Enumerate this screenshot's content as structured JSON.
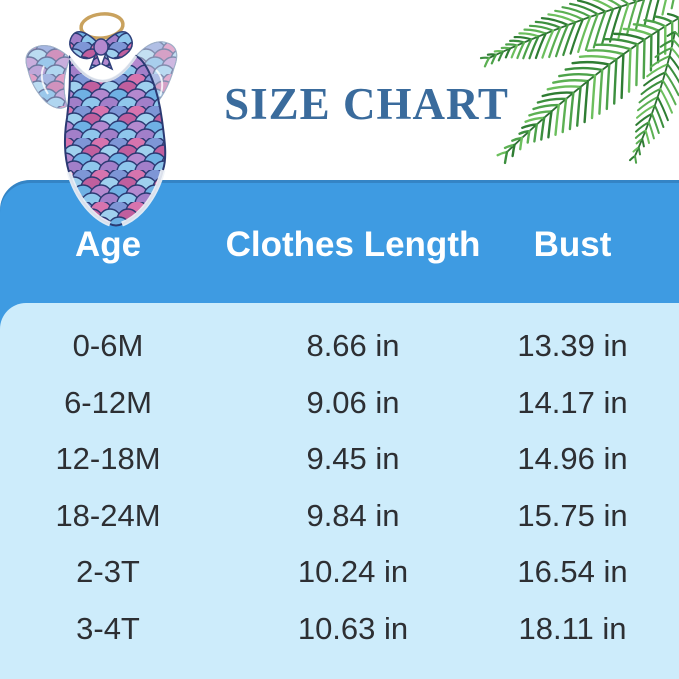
{
  "title": "SIZE CHART",
  "table": {
    "columns": [
      "Age",
      "Clothes Length",
      "Bust"
    ],
    "rows": [
      [
        "0-6M",
        "8.66 in",
        "13.39 in"
      ],
      [
        "6-12M",
        "9.06 in",
        "14.17 in"
      ],
      [
        "12-18M",
        "9.45 in",
        "14.96 in"
      ],
      [
        "18-24M",
        "9.84 in",
        "15.75 in"
      ],
      [
        "2-3T",
        "10.24 in",
        "16.54 in"
      ],
      [
        "3-4T",
        "10.63 in",
        "18.11 in"
      ]
    ]
  },
  "icons": {
    "garment": "mermaid-scale-romper-with-bow-headband-illustration",
    "palm": "palm-leaves-illustration"
  },
  "colors": {
    "header_band": "#3e9be2",
    "body_panel": "#cdecfb",
    "title_text": "#3a6b9c",
    "header_text": "#ffffff",
    "body_text": "#2d2f33",
    "palm_green": "#3c8f3e",
    "headband_gold": "#c9a25e"
  }
}
